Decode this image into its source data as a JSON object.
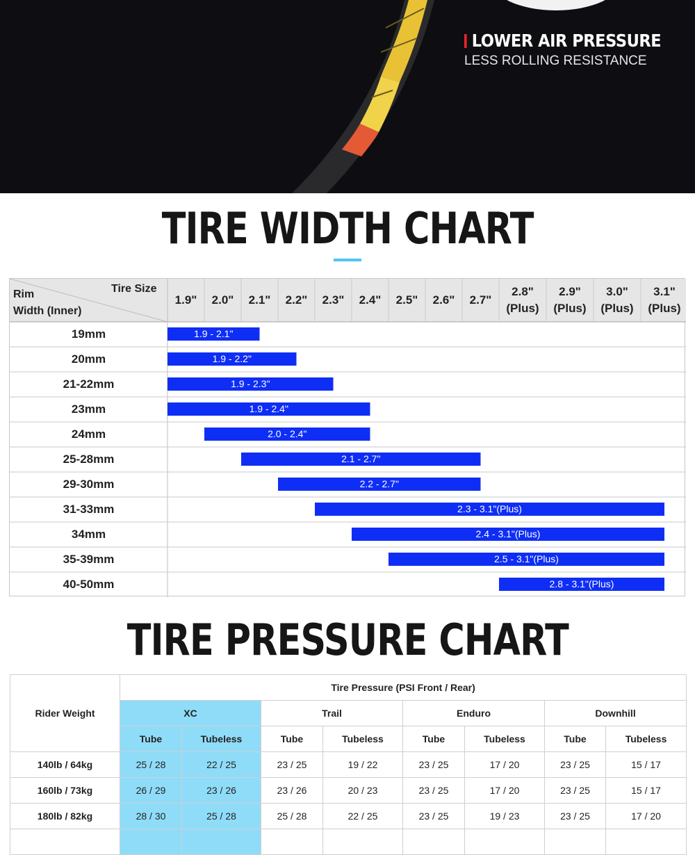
{
  "hero": {
    "title": "LOWER AIR PRESSURE",
    "subtitle": "LESS ROLLING RESISTANCE",
    "colors": {
      "background": "#0e0e12",
      "accent": "#e8262a"
    }
  },
  "width_chart": {
    "title": "TIRE WIDTH CHART",
    "corner_tire_label": "Tire Size",
    "corner_rim_label_line1": "Rim",
    "corner_rim_label_line2": "Width (Inner)",
    "bar_color": "#0f2ef5"
  },
  "pressure_chart": {
    "title": "TIRE PRESSURE CHART",
    "rider_weight_label": "Rider Weight",
    "super_header": "Tire Pressure (PSI Front / Rear)",
    "highlight_color": "#8fdcf8"
  },
  "chart_data": [
    {
      "type": "bar",
      "title": "TIRE WIDTH CHART",
      "xlabel": "Tire Size",
      "ylabel": "Rim Width (Inner)",
      "categories": [
        "1.9\"",
        "2.0\"",
        "2.1\"",
        "2.2\"",
        "2.3\"",
        "2.4\"",
        "2.5\"",
        "2.6\"",
        "2.7\"",
        "2.8\" (Plus)",
        "2.9\" (Plus)",
        "3.0\" (Plus)",
        "3.1\" (Plus)"
      ],
      "rows": [
        {
          "rim": "19mm",
          "label": "1.9 - 2.1\"",
          "start": 0,
          "end": 2
        },
        {
          "rim": "20mm",
          "label": "1.9 - 2.2\"",
          "start": 0,
          "end": 3
        },
        {
          "rim": "21-22mm",
          "label": "1.9 - 2.3\"",
          "start": 0,
          "end": 4
        },
        {
          "rim": "23mm",
          "label": "1.9 - 2.4\"",
          "start": 0,
          "end": 5
        },
        {
          "rim": "24mm",
          "label": "2.0 - 2.4\"",
          "start": 1,
          "end": 5
        },
        {
          "rim": "25-28mm",
          "label": "2.1 - 2.7\"",
          "start": 2,
          "end": 8
        },
        {
          "rim": "29-30mm",
          "label": "2.2 - 2.7\"",
          "start": 3,
          "end": 8
        },
        {
          "rim": "31-33mm",
          "label": "2.3 - 3.1\"(Plus)",
          "start": 4,
          "end": 12
        },
        {
          "rim": "34mm",
          "label": "2.4 - 3.1\"(Plus)",
          "start": 5,
          "end": 12
        },
        {
          "rim": "35-39mm",
          "label": "2.5 - 3.1\"(Plus)",
          "start": 6,
          "end": 12
        },
        {
          "rim": "40-50mm",
          "label": "2.8 - 3.1\"(Plus)",
          "start": 9,
          "end": 12
        }
      ],
      "grid": true
    },
    {
      "type": "table",
      "title": "TIRE PRESSURE CHART",
      "groups": [
        "XC",
        "Trail",
        "Enduro",
        "Downhill"
      ],
      "subcolumns": [
        "Tube",
        "Tubeless"
      ],
      "rows": [
        {
          "weight": "140lb / 64kg",
          "values": [
            "25 / 28",
            "22 / 25",
            "23 / 25",
            "19 / 22",
            "23 / 25",
            "17 / 20",
            "23 / 25",
            "15 / 17"
          ]
        },
        {
          "weight": "160lb / 73kg",
          "values": [
            "26 / 29",
            "23 / 26",
            "23 / 26",
            "20 / 23",
            "23 / 25",
            "17 / 20",
            "23 / 25",
            "15 / 17"
          ]
        },
        {
          "weight": "180lb / 82kg",
          "values": [
            "28 / 30",
            "25 / 28",
            "25 / 28",
            "22 / 25",
            "23 / 25",
            "19 / 23",
            "23 / 25",
            "17 / 20"
          ]
        }
      ]
    }
  ]
}
